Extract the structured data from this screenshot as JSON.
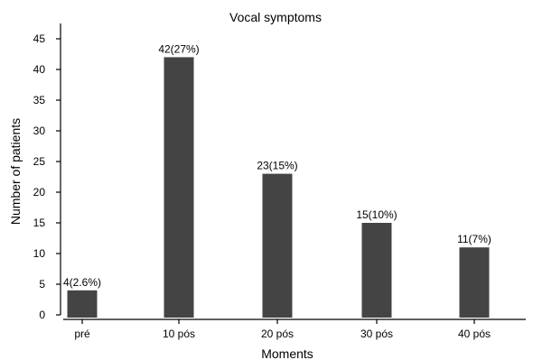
{
  "chart_data": {
    "type": "bar",
    "title": "Vocal symptoms",
    "xlabel": "Moments",
    "ylabel": "Number of patients",
    "categories": [
      "pré",
      "10 pós",
      "20 pós",
      "30 pós",
      "40 pós"
    ],
    "values": [
      4,
      42,
      23,
      15,
      11
    ],
    "data_labels": [
      "4(2.6%)",
      "42(27%)",
      "23(15%)",
      "15(10%)",
      "11(7%)"
    ],
    "ylim": [
      0,
      45
    ],
    "yticks": [
      0,
      5,
      10,
      15,
      20,
      25,
      30,
      35,
      40,
      45
    ],
    "grid": false,
    "legend": "none",
    "bar_color": "#444444"
  }
}
